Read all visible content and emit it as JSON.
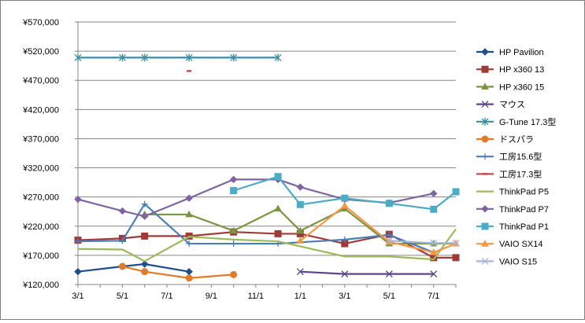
{
  "chart_data": {
    "type": "line",
    "title": "",
    "xlabel": "",
    "ylabel": "",
    "x": [
      "3/1",
      "4/1",
      "5/1",
      "6/1",
      "7/1",
      "8/1",
      "9/1",
      "10/1",
      "11/1",
      "12/1",
      "1/1",
      "2/1",
      "3/1",
      "4/1",
      "5/1",
      "6/1",
      "7/1",
      "8/1"
    ],
    "x_tick_labels": [
      "3/1",
      "5/1",
      "7/1",
      "9/1",
      "11/1",
      "1/1",
      "3/1",
      "5/1",
      "7/1"
    ],
    "ylim": [
      120000,
      570000
    ],
    "y_ticks": [
      120000,
      170000,
      220000,
      270000,
      320000,
      370000,
      420000,
      470000,
      520000,
      570000
    ],
    "y_tick_labels": [
      "¥120,000",
      "¥170,000",
      "¥220,000",
      "¥270,000",
      "¥320,000",
      "¥370,000",
      "¥420,000",
      "¥470,000",
      "¥520,000",
      "¥570,000"
    ],
    "gridlines": "horizontal",
    "legend_position": "right",
    "series": [
      {
        "name": "HP Pavilion",
        "color": "#1f4e8c",
        "marker": "diamond",
        "values": [
          142000,
          null,
          151000,
          155000,
          null,
          142000,
          null,
          null,
          null,
          null,
          null,
          null,
          null,
          null,
          null,
          null,
          null,
          null
        ]
      },
      {
        "name": "HP x360 13",
        "color": "#9e3a38",
        "marker": "square",
        "values": [
          196000,
          null,
          199000,
          203000,
          null,
          203000,
          null,
          210000,
          null,
          207000,
          207000,
          null,
          190000,
          null,
          206000,
          null,
          166000,
          166000
        ]
      },
      {
        "name": "HP x360 15",
        "color": "#7a9441",
        "marker": "triangle",
        "values": [
          null,
          null,
          null,
          240000,
          null,
          240000,
          null,
          212000,
          null,
          250000,
          212000,
          null,
          250000,
          null,
          190000,
          null,
          190000,
          190000
        ]
      },
      {
        "name": "マウス",
        "color": "#5e4489",
        "marker": "x",
        "values": [
          null,
          null,
          null,
          null,
          null,
          null,
          null,
          null,
          null,
          null,
          142000,
          null,
          138000,
          null,
          138000,
          null,
          138000,
          null
        ]
      },
      {
        "name": "G-Tune 17.3型",
        "color": "#3d8ea1",
        "marker": "star",
        "values": [
          509000,
          null,
          509000,
          509000,
          null,
          509000,
          null,
          509000,
          null,
          509000,
          null,
          null,
          null,
          null,
          null,
          null,
          null,
          null
        ]
      },
      {
        "name": "ドスパラ",
        "color": "#e07b2a",
        "marker": "circle",
        "values": [
          null,
          null,
          151000,
          142000,
          null,
          131000,
          null,
          137000,
          null,
          null,
          null,
          null,
          null,
          null,
          null,
          null,
          null,
          null
        ]
      },
      {
        "name": "工房15.6型",
        "color": "#4a7ebb",
        "marker": "plus",
        "values": [
          194000,
          null,
          195000,
          258000,
          null,
          190000,
          null,
          190000,
          null,
          190000,
          null,
          null,
          197000,
          null,
          205000,
          null,
          175000,
          null
        ]
      },
      {
        "name": "工房17.3型",
        "color": "#c0504d",
        "marker": "dash",
        "values": [
          null,
          null,
          null,
          null,
          null,
          486000,
          null,
          null,
          null,
          null,
          null,
          null,
          null,
          null,
          null,
          null,
          null,
          null
        ]
      },
      {
        "name": "ThinkPad P5",
        "color": "#9bbb59",
        "marker": "none",
        "values": [
          181000,
          null,
          180000,
          160000,
          null,
          202000,
          null,
          197000,
          null,
          194000,
          null,
          null,
          168000,
          null,
          168000,
          null,
          163000,
          215000
        ]
      },
      {
        "name": "ThinkPad P7",
        "color": "#8064a2",
        "marker": "diamond",
        "values": [
          266000,
          null,
          246000,
          237000,
          null,
          268000,
          null,
          300000,
          null,
          300000,
          287000,
          null,
          266000,
          null,
          260000,
          null,
          276000,
          null
        ]
      },
      {
        "name": "ThinkPad P1",
        "color": "#4bacc6",
        "marker": "square",
        "values": [
          null,
          null,
          null,
          null,
          null,
          null,
          null,
          281000,
          null,
          305000,
          257000,
          null,
          268000,
          null,
          259000,
          null,
          249000,
          279000
        ]
      },
      {
        "name": "VAIO SX14",
        "color": "#f79646",
        "marker": "triangle",
        "values": [
          null,
          null,
          null,
          null,
          null,
          null,
          null,
          null,
          null,
          null,
          195000,
          null,
          255000,
          null,
          193000,
          null,
          175000,
          190000
        ]
      },
      {
        "name": "VAIO S15",
        "color": "#a6b4dc",
        "marker": "x",
        "values": [
          null,
          null,
          null,
          null,
          null,
          null,
          null,
          null,
          null,
          null,
          null,
          null,
          null,
          null,
          195000,
          null,
          191000,
          191000
        ]
      }
    ]
  }
}
